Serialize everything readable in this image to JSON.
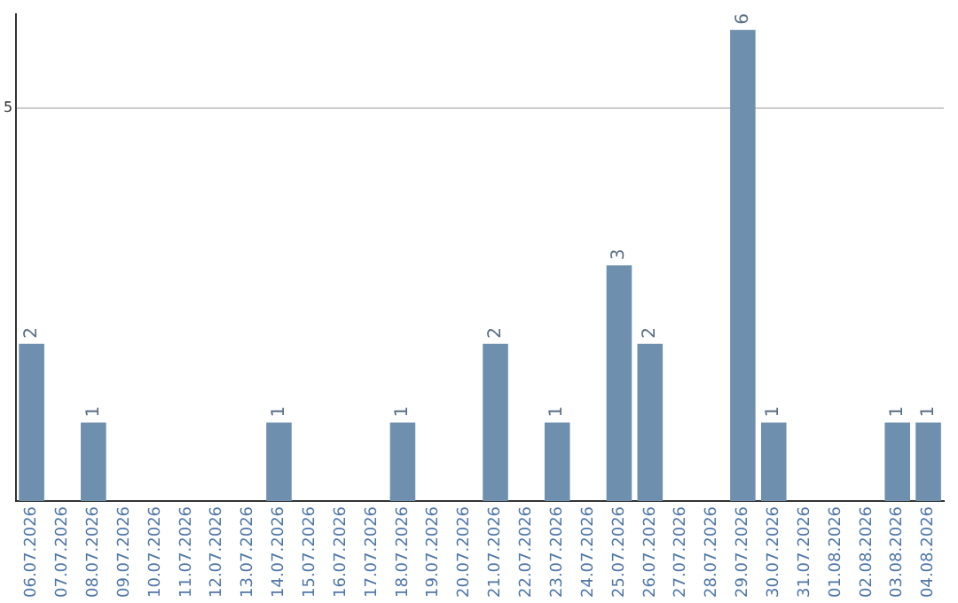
{
  "chart_data": {
    "type": "bar",
    "categories": [
      "06.07.2026",
      "07.07.2026",
      "08.07.2026",
      "09.07.2026",
      "10.07.2026",
      "11.07.2026",
      "12.07.2026",
      "13.07.2026",
      "14.07.2026",
      "15.07.2026",
      "16.07.2026",
      "17.07.2026",
      "18.07.2026",
      "19.07.2026",
      "20.07.2026",
      "21.07.2026",
      "22.07.2026",
      "23.07.2026",
      "24.07.2026",
      "25.07.2026",
      "26.07.2026",
      "27.07.2026",
      "28.07.2026",
      "29.07.2026",
      "30.07.2026",
      "31.07.2026",
      "01.08.2026",
      "02.08.2026",
      "03.08.2026",
      "04.08.2026"
    ],
    "values": [
      2,
      0,
      1,
      0,
      0,
      0,
      0,
      0,
      1,
      0,
      0,
      0,
      1,
      0,
      0,
      2,
      0,
      1,
      0,
      3,
      2,
      0,
      0,
      6,
      1,
      0,
      0,
      0,
      1,
      1
    ],
    "value_labels": [
      "2",
      null,
      "1",
      null,
      null,
      null,
      null,
      null,
      "1",
      null,
      null,
      null,
      "1",
      null,
      null,
      "2",
      null,
      "1",
      null,
      "3",
      "2",
      null,
      null,
      "6",
      "1",
      null,
      null,
      null,
      "1",
      "1"
    ],
    "color": "#6f8fae",
    "ylim": [
      0,
      6.2
    ],
    "yticks": [
      5
    ],
    "grid": "y",
    "legend": false
  }
}
